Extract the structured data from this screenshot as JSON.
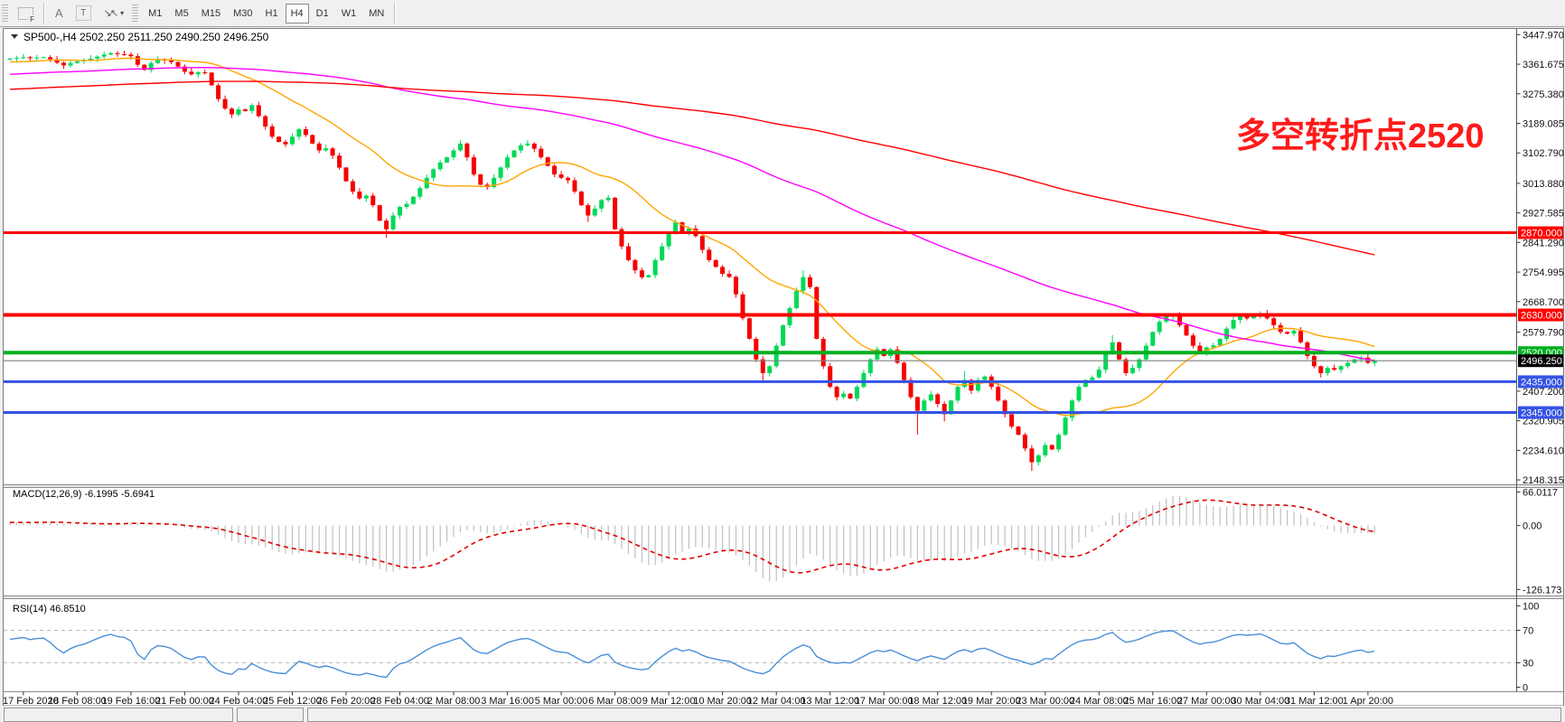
{
  "toolbar": {
    "icons": {
      "crosshair_f": "F",
      "text": "A",
      "textbox": "T",
      "arrows": "↘↖",
      "caret": "▾"
    },
    "timeframes": [
      "M1",
      "M5",
      "M15",
      "M30",
      "H1",
      "H4",
      "D1",
      "W1",
      "MN"
    ],
    "active_timeframe": "H4"
  },
  "chart_data": {
    "type": "candlestick",
    "title_symbol": "SP500-,H4",
    "title_ohlc": "2502.250 2511.250 2490.250 2496.250",
    "annotation": {
      "text": "多空转折点2520",
      "color": "#FF1A1A"
    },
    "price_axis_labels": [
      "3447.970",
      "3361.675",
      "3275.380",
      "3189.085",
      "3102.790",
      "3013.880",
      "2927.585",
      "2841.290",
      "2754.995",
      "2668.700",
      "2579.790",
      "2407.200",
      "2320.905",
      "2234.610",
      "2148.315"
    ],
    "time_axis_labels": [
      "17 Feb 2020",
      "18 Feb 08:00",
      "19 Feb 16:00",
      "21 Feb 00:00",
      "24 Feb 04:00",
      "25 Feb 12:00",
      "26 Feb 20:00",
      "28 Feb 04:00",
      "2 Mar 08:00",
      "3 Mar 16:00",
      "5 Mar 00:00",
      "6 Mar 08:00",
      "9 Mar 12:00",
      "10 Mar 20:00",
      "12 Mar 04:00",
      "13 Mar 12:00",
      "17 Mar 00:00",
      "18 Mar 12:00",
      "19 Mar 20:00",
      "23 Mar 00:00",
      "24 Mar 08:00",
      "25 Mar 16:00",
      "27 Mar 00:00",
      "30 Mar 04:00",
      "31 Mar 12:00",
      "1 Apr 20:00"
    ],
    "y_range": [
      2134,
      3466
    ],
    "first_open": 3375,
    "closes": [
      3378,
      3380,
      3382,
      3379,
      3381,
      3382,
      3376,
      3366,
      3358,
      3365,
      3370,
      3373,
      3378,
      3384,
      3390,
      3394,
      3391,
      3390,
      3385,
      3360,
      3345,
      3365,
      3375,
      3373,
      3368,
      3355,
      3340,
      3332,
      3338,
      3337,
      3300,
      3260,
      3232,
      3215,
      3230,
      3225,
      3242,
      3210,
      3180,
      3150,
      3135,
      3128,
      3150,
      3172,
      3155,
      3130,
      3110,
      3116,
      3095,
      3060,
      3020,
      2990,
      2970,
      2978,
      2950,
      2905,
      2880,
      2920,
      2945,
      2954,
      2975,
      3000,
      3030,
      3055,
      3075,
      3090,
      3110,
      3130,
      3090,
      3040,
      3010,
      3003,
      3030,
      3060,
      3090,
      3110,
      3125,
      3130,
      3115,
      3090,
      3065,
      3040,
      3030,
      3023,
      2990,
      2950,
      2920,
      2940,
      2965,
      2972,
      2880,
      2830,
      2790,
      2760,
      2740,
      2746,
      2790,
      2830,
      2870,
      2900,
      2870,
      2882,
      2860,
      2820,
      2790,
      2770,
      2750,
      2741,
      2690,
      2620,
      2560,
      2500,
      2460,
      2480,
      2540,
      2600,
      2650,
      2700,
      2740,
      2711,
      2560,
      2480,
      2420,
      2390,
      2400,
      2386,
      2420,
      2460,
      2500,
      2530,
      2510,
      2529,
      2490,
      2440,
      2390,
      2350,
      2380,
      2398,
      2370,
      2340,
      2380,
      2420,
      2440,
      2409,
      2440,
      2450,
      2420,
      2380,
      2340,
      2304,
      2280,
      2240,
      2200,
      2220,
      2250,
      2237,
      2280,
      2330,
      2380,
      2420,
      2440,
      2447,
      2470,
      2520,
      2550,
      2500,
      2460,
      2475,
      2500,
      2540,
      2580,
      2610,
      2625,
      2630,
      2600,
      2570,
      2540,
      2520,
      2535,
      2541,
      2560,
      2590,
      2615,
      2625,
      2620,
      2626,
      2635,
      2620,
      2600,
      2580,
      2575,
      2584,
      2550,
      2510,
      2480,
      2460,
      2475,
      2470,
      2480,
      2490,
      2500,
      2505,
      2490,
      2496.25
    ],
    "wick_high_overrides": {
      "15": 3397,
      "18": 3397,
      "67": 3140,
      "118": 2760,
      "142": 2466,
      "145": 2453,
      "164": 2571,
      "186": 2641
    },
    "wick_low_overrides": {
      "56": 2855,
      "86": 2901,
      "94": 2734,
      "112": 2437,
      "123": 2380,
      "135": 2280,
      "139": 2319,
      "152": 2174,
      "195": 2447
    },
    "up_color": "#00D957",
    "down_color": "#F50000",
    "moving_averages": [
      {
        "name": "fast-ma",
        "period": 20,
        "color": "#FFA500"
      },
      {
        "name": "medium-ma",
        "period": 100,
        "color": "#FF00FF"
      },
      {
        "name": "slow-ma",
        "period": 200,
        "color": "#FF0000"
      }
    ],
    "hlines": [
      {
        "value": 2870,
        "label": "2870.000",
        "color": "#FF0000",
        "width": 3
      },
      {
        "value": 2630,
        "label": "2630.000",
        "color": "#FF0000",
        "width": 4
      },
      {
        "value": 2520,
        "label": "2520.000",
        "color": "#00B020",
        "width": 4
      },
      {
        "value": 2435,
        "label": "2435.000",
        "color": "#3453E6",
        "width": 3
      },
      {
        "value": 2345,
        "label": "2345.000",
        "color": "#3453E6",
        "width": 3
      }
    ],
    "current_price": {
      "value": 2496.25,
      "label": "2496.250",
      "line_color": "#808080",
      "badge_color": "#000000"
    },
    "indicators": {
      "macd": {
        "label": "MACD(12,26,9) -6.1995 -5.6941",
        "fast": 12,
        "slow": 26,
        "signal": 9,
        "axis_labels": [
          "66.0117",
          "0.00",
          "-126.173"
        ],
        "axis_range": [
          -139,
          75
        ],
        "histogram_color": "#C0C0C0",
        "signal_color": "#E00000"
      },
      "rsi": {
        "label": "RSI(14) 46.8510",
        "period": 14,
        "axis_labels": [
          "100",
          "70",
          "30",
          "0"
        ],
        "levels": [
          70,
          30
        ],
        "line_color": "#4A90D9",
        "level_color": "#BBBBBB"
      }
    }
  },
  "status_bar": {
    "cells": [
      "",
      "",
      ""
    ]
  }
}
